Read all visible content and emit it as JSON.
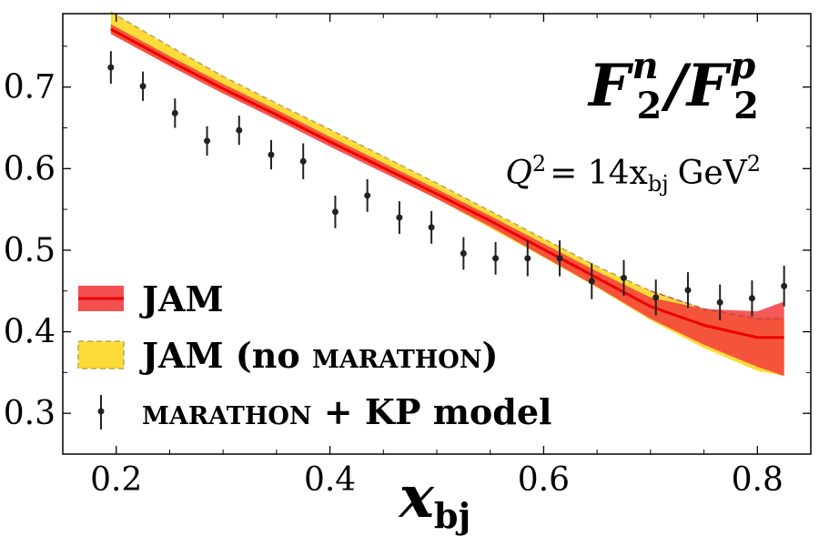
{
  "chart_data": {
    "type": "line",
    "xlim": [
      0.15,
      0.85
    ],
    "ylim": [
      0.25,
      0.79
    ],
    "xticks": [
      0.2,
      0.4,
      0.6,
      0.8
    ],
    "yticks": [
      0.3,
      0.4,
      0.5,
      0.6,
      0.7
    ],
    "xtick_labels": [
      "0.2",
      "0.4",
      "0.6",
      "0.8"
    ],
    "ytick_labels": [
      "0.3",
      "0.4",
      "0.5",
      "0.6",
      "0.7"
    ],
    "xlabel_main": "x",
    "xlabel_sub": "bj",
    "title_num": "F",
    "title_num_sup": "n",
    "title_num_sub": "2",
    "title_slash": "/",
    "title_den": "F",
    "title_den_sup": "p",
    "title_den_sub": "2",
    "sub_lhs": "Q",
    "sub_lhs_sup": "2",
    "sub_eq": "= 14x",
    "sub_x_sub": "bj",
    "sub_unit": "GeV",
    "sub_unit_sup": "2",
    "colors": {
      "jam_band": "#f23c3c",
      "jam_line": "#ee0000",
      "nomar_band": "#ffd92e",
      "nomar_edge": "#b5a55a",
      "points": "#222222"
    },
    "legend_placement": "lower-left",
    "legend": {
      "jam": "JAM",
      "nomar_prefix": "JAM (no ",
      "nomar_sc": "MARATHON",
      "nomar_suffix": ")",
      "data_sc": "MARATHON",
      "data_suffix": " + KP model"
    },
    "series": [
      {
        "name": "JAM",
        "kind": "band",
        "x": [
          0.195,
          0.25,
          0.3,
          0.35,
          0.4,
          0.45,
          0.5,
          0.55,
          0.6,
          0.65,
          0.7,
          0.75,
          0.8,
          0.825
        ],
        "center": [
          0.771,
          0.732,
          0.698,
          0.666,
          0.633,
          0.601,
          0.569,
          0.536,
          0.501,
          0.466,
          0.431,
          0.408,
          0.393,
          0.393
        ],
        "lower": [
          0.765,
          0.726,
          0.692,
          0.66,
          0.627,
          0.595,
          0.563,
          0.529,
          0.492,
          0.455,
          0.416,
          0.384,
          0.357,
          0.346
        ],
        "upper": [
          0.777,
          0.738,
          0.704,
          0.672,
          0.639,
          0.607,
          0.575,
          0.542,
          0.508,
          0.474,
          0.442,
          0.428,
          0.425,
          0.437
        ]
      },
      {
        "name": "JAM (no MARATHON)",
        "kind": "band",
        "x": [
          0.195,
          0.25,
          0.3,
          0.35,
          0.4,
          0.45,
          0.5,
          0.55,
          0.6,
          0.65,
          0.7,
          0.75,
          0.8,
          0.825
        ],
        "lower": [
          0.765,
          0.727,
          0.694,
          0.662,
          0.63,
          0.597,
          0.563,
          0.527,
          0.491,
          0.454,
          0.414,
          0.38,
          0.352,
          0.346
        ],
        "upper": [
          0.792,
          0.75,
          0.713,
          0.68,
          0.648,
          0.615,
          0.582,
          0.548,
          0.514,
          0.48,
          0.45,
          0.428,
          0.416,
          0.416
        ]
      },
      {
        "name": "MARATHON + KP model",
        "kind": "errorbar",
        "x": [
          0.195,
          0.225,
          0.255,
          0.285,
          0.315,
          0.345,
          0.375,
          0.405,
          0.435,
          0.465,
          0.495,
          0.525,
          0.555,
          0.585,
          0.615,
          0.645,
          0.675,
          0.705,
          0.735,
          0.765,
          0.795,
          0.825
        ],
        "y": [
          0.724,
          0.701,
          0.668,
          0.634,
          0.647,
          0.617,
          0.609,
          0.547,
          0.567,
          0.54,
          0.528,
          0.496,
          0.49,
          0.49,
          0.49,
          0.462,
          0.466,
          0.442,
          0.451,
          0.436,
          0.441,
          0.456
        ],
        "err": [
          0.02,
          0.018,
          0.018,
          0.018,
          0.018,
          0.018,
          0.022,
          0.02,
          0.02,
          0.02,
          0.02,
          0.02,
          0.02,
          0.022,
          0.022,
          0.022,
          0.022,
          0.022,
          0.022,
          0.022,
          0.022,
          0.025
        ]
      }
    ]
  }
}
